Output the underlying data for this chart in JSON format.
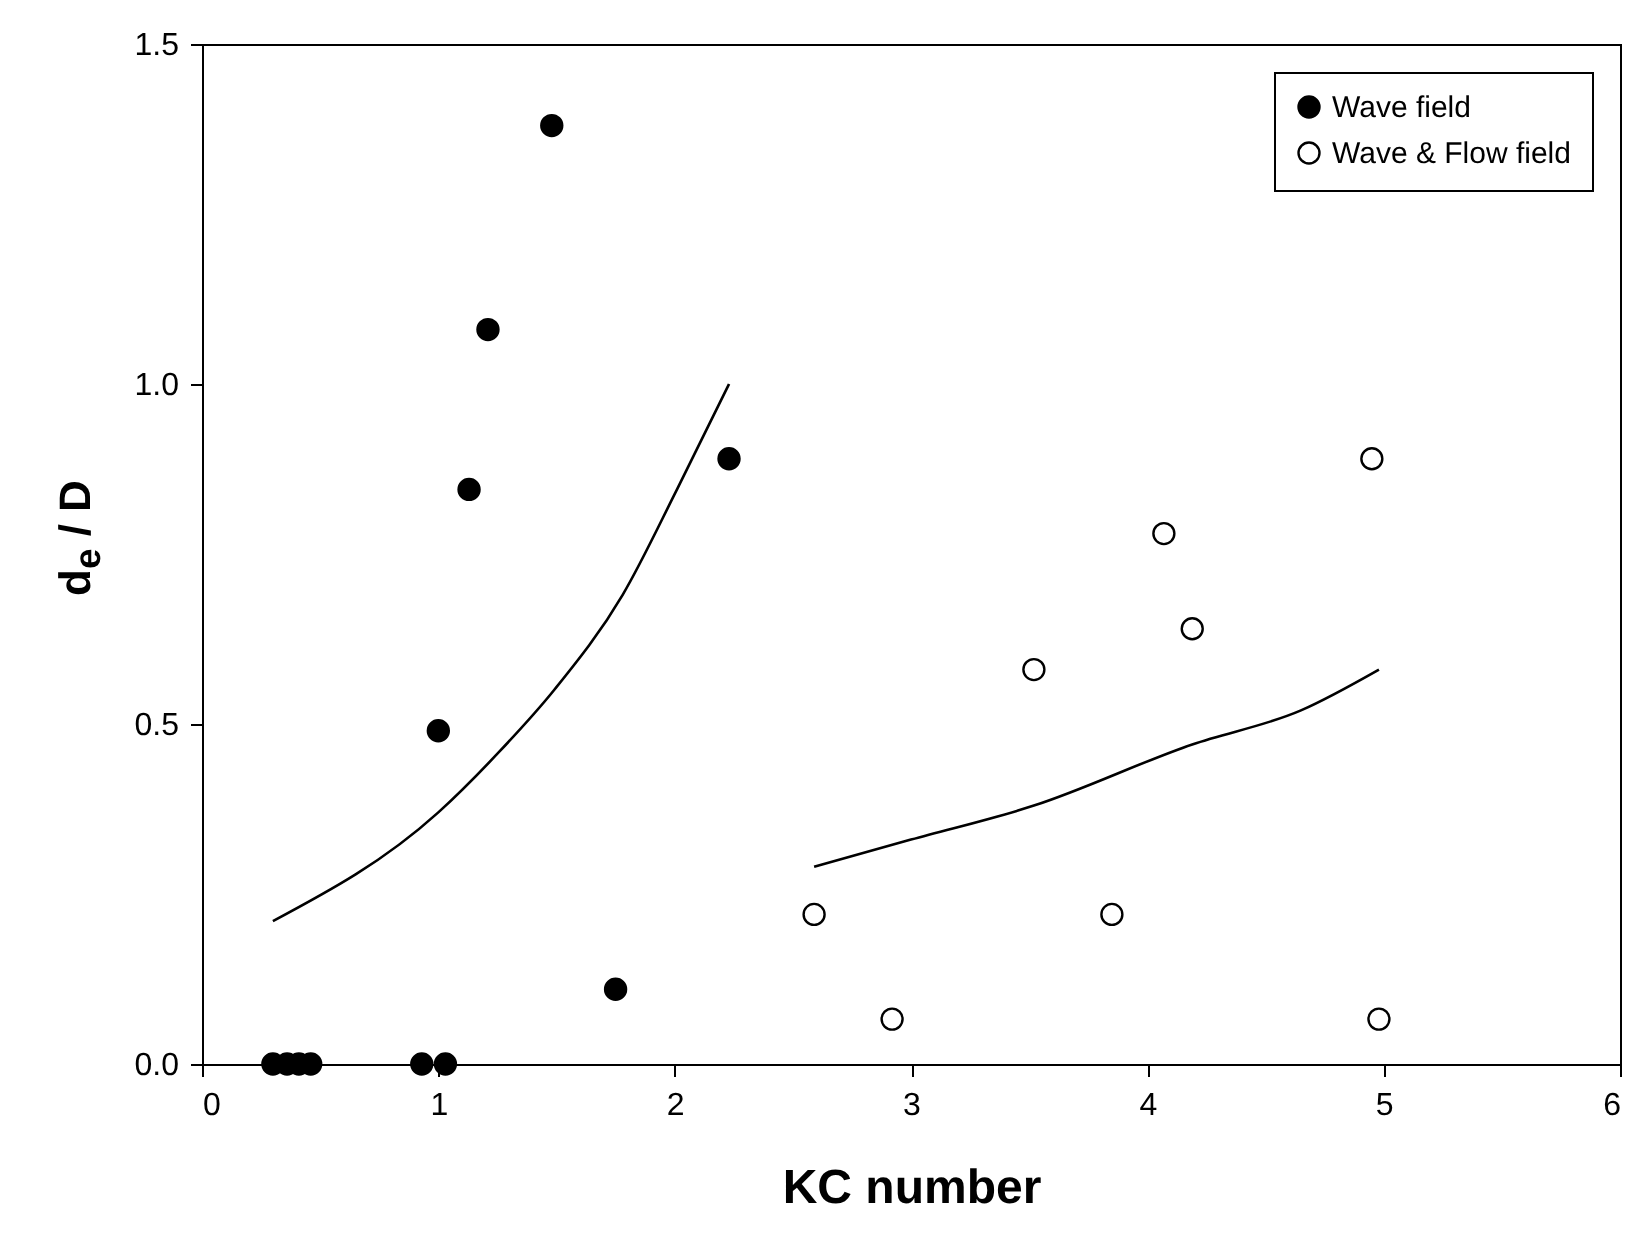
{
  "chart_data": {
    "type": "scatter",
    "xlabel": "KC number",
    "ylabel": "d$_{e}$ / D",
    "xlim": [
      0,
      6
    ],
    "xticks": [
      0,
      1,
      2,
      3,
      4,
      5,
      6
    ],
    "ylim": [
      0,
      1.5
    ],
    "yticks": [
      {
        "value": 0,
        "label": "0.0"
      },
      {
        "value": 0.5,
        "label": "0.5"
      },
      {
        "value": 1,
        "label": "1.0"
      },
      {
        "value": 1.5,
        "label": "1.5"
      }
    ],
    "grid": false,
    "legend": "top right",
    "series": [
      {
        "name": "Wave field",
        "marker": "circle",
        "color": "#000000",
        "x": [
          0.3,
          0.36,
          0.41,
          0.46,
          0.93,
          1.03,
          1.0,
          1.13,
          1.21,
          1.48,
          2.23,
          1.75
        ],
        "values": [
          0,
          0,
          0,
          0,
          0,
          0,
          0.49,
          0.845,
          1.08,
          1.38,
          0.89,
          0.11
        ]
      },
      {
        "name": "Wave & Flow field",
        "marker": "circle",
        "color": "#ffffff",
        "x": [
          2.59,
          2.92,
          3.52,
          3.85,
          4.07,
          4.19,
          4.95,
          4.98
        ],
        "values": [
          0.22,
          0.066,
          0.58,
          0.22,
          0.78,
          0.64,
          0.89,
          0.066
        ]
      },
      {
        "type": "line",
        "marker": "none",
        "color": "#000000",
        "x": [
          0.3,
          1.0,
          1.26,
          1.49,
          1.78,
          2.01,
          2.23
        ],
        "values": [
          0.21,
          0.37,
          0.46,
          0.55,
          0.69,
          0.845,
          1.0
        ]
      },
      {
        "type": "line",
        "marker": "none",
        "color": "#000000",
        "x": [
          2.59,
          3.0,
          3.52,
          4.19,
          4.65,
          4.98
        ],
        "values": [
          0.29,
          0.33,
          0.38,
          0.47,
          0.52,
          0.58
        ]
      }
    ]
  }
}
